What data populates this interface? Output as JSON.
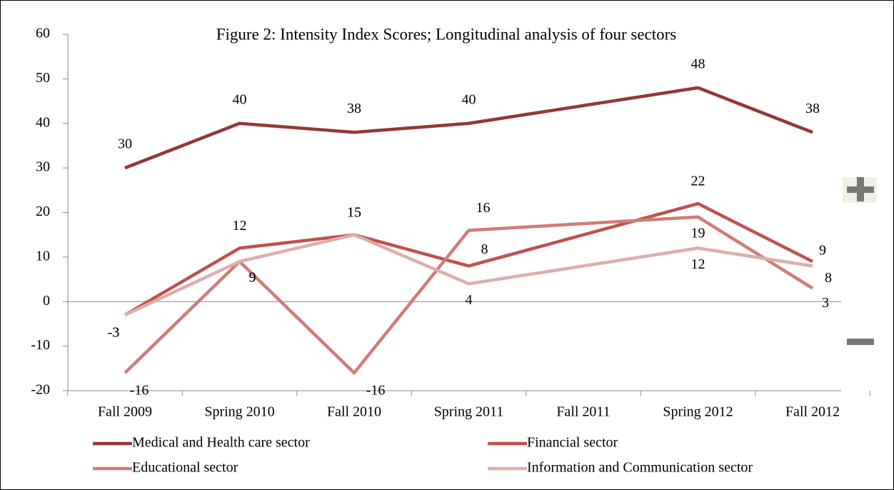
{
  "chart_data": {
    "type": "line",
    "title": "Figure 2: Intensity Index Scores; Longitudinal analysis of four sectors",
    "categories": [
      "Fall 2009",
      "Spring 2010",
      "Fall 2010",
      "Spring 2011",
      "Fall 2011",
      "Spring 2012",
      "Fall 2012"
    ],
    "series": [
      {
        "name": "Medical and Health care sector",
        "color": "#953735",
        "values": [
          30,
          40,
          38,
          40,
          null,
          48,
          38
        ]
      },
      {
        "name": "Financial sector",
        "color": "#c0504d",
        "values": [
          -3,
          12,
          15,
          8,
          null,
          22,
          9
        ]
      },
      {
        "name": "Educational sector",
        "color": "#d07c79",
        "values": [
          -16,
          9,
          -16,
          16,
          null,
          19,
          3
        ]
      },
      {
        "name": "Information and Communication sector",
        "color": "#dcaeac",
        "values": [
          -3,
          9,
          15,
          4,
          null,
          12,
          8
        ]
      }
    ],
    "connect_gaps": true,
    "ylim": [
      -20,
      60
    ],
    "yticks": [
      -20,
      -10,
      0,
      10,
      20,
      30,
      40,
      50,
      60
    ],
    "legend": "bottom"
  }
}
